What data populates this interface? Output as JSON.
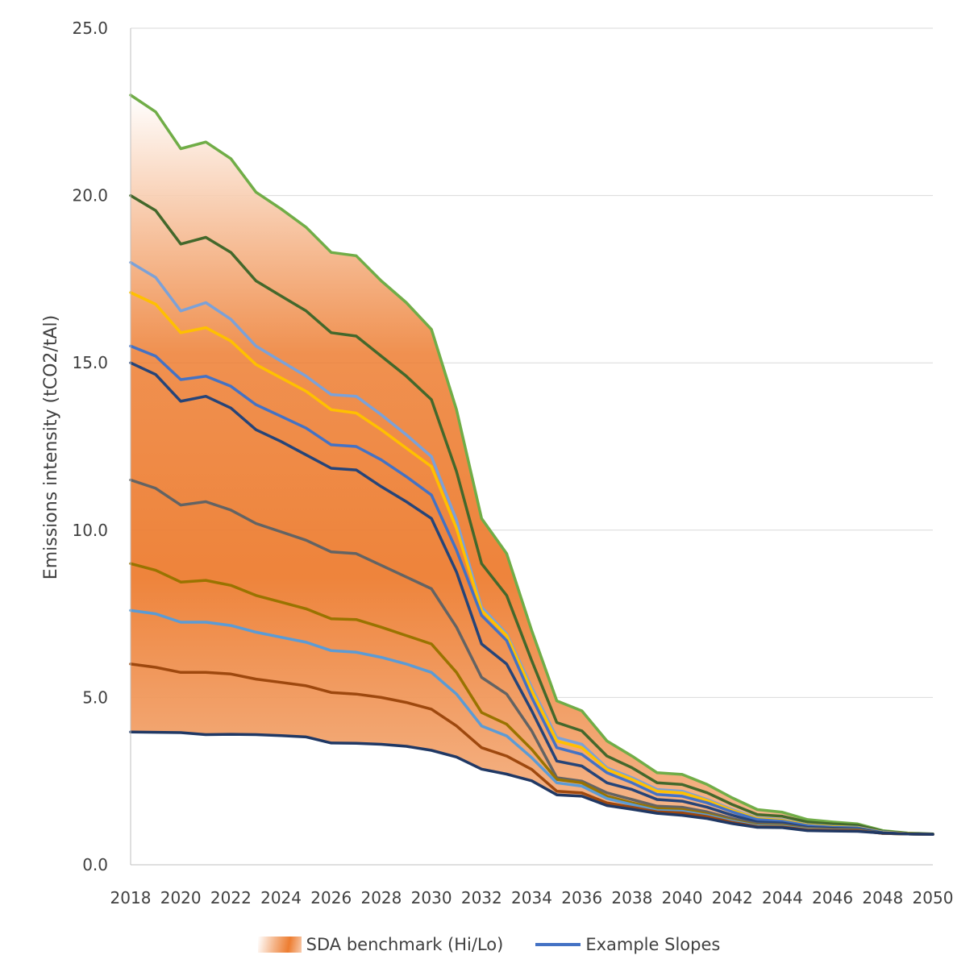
{
  "chart_data": {
    "type": "line",
    "title": "",
    "xlabel": "",
    "ylabel": "Emissions intensity (tCO2/tAl)",
    "ylim": [
      0,
      25
    ],
    "yticks": [
      "0.0",
      "5.0",
      "10.0",
      "15.0",
      "20.0",
      "25.0"
    ],
    "xlim": [
      2018,
      2050
    ],
    "xticks": [
      "2018",
      "2020",
      "2022",
      "2024",
      "2026",
      "2028",
      "2030",
      "2032",
      "2034",
      "2036",
      "2038",
      "2040",
      "2042",
      "2044",
      "2046",
      "2048",
      "2050"
    ],
    "grid": "horizontal",
    "legend_position": "bottom",
    "legend": [
      {
        "label": "SDA benchmark (Hi/Lo)",
        "kind": "band"
      },
      {
        "label": "Example Slopes",
        "kind": "line",
        "color": "#4472c4"
      }
    ],
    "x": [
      2018,
      2019,
      2020,
      2021,
      2022,
      2023,
      2024,
      2025,
      2026,
      2027,
      2028,
      2029,
      2030,
      2031,
      2032,
      2033,
      2034,
      2035,
      2036,
      2037,
      2038,
      2039,
      2040,
      2041,
      2042,
      2043,
      2044,
      2045,
      2046,
      2047,
      2048,
      2049,
      2050
    ],
    "band": {
      "name": "SDA benchmark (Hi/Lo)",
      "high": [
        23.0,
        22.5,
        21.4,
        21.6,
        21.1,
        20.1,
        19.6,
        19.05,
        18.3,
        18.2,
        17.45,
        16.8,
        16.0,
        13.6,
        10.35,
        9.3,
        7.0,
        4.9,
        4.6,
        3.7,
        3.25,
        2.75,
        2.7,
        2.4,
        2.0,
        1.65,
        1.57,
        1.35,
        1.28,
        1.22,
        1.02,
        0.95,
        0.92
      ],
      "low": [
        3.97,
        3.96,
        3.95,
        3.89,
        3.9,
        3.89,
        3.86,
        3.82,
        3.64,
        3.63,
        3.6,
        3.54,
        3.42,
        3.22,
        2.86,
        2.71,
        2.51,
        2.09,
        2.05,
        1.77,
        1.66,
        1.54,
        1.48,
        1.38,
        1.23,
        1.12,
        1.11,
        1.02,
        1.01,
        1.0,
        0.95,
        0.92,
        0.91
      ]
    },
    "series": [
      {
        "color": "#70ad47",
        "values": [
          23.0,
          22.5,
          21.4,
          21.6,
          21.1,
          20.1,
          19.6,
          19.05,
          18.3,
          18.2,
          17.45,
          16.8,
          16.0,
          13.6,
          10.35,
          9.3,
          7.0,
          4.9,
          4.6,
          3.7,
          3.25,
          2.75,
          2.7,
          2.4,
          2.0,
          1.65,
          1.57,
          1.35,
          1.28,
          1.22,
          1.02,
          0.95,
          0.92
        ]
      },
      {
        "color": "#43682b",
        "values": [
          20.0,
          19.55,
          18.55,
          18.75,
          18.3,
          17.45,
          17.0,
          16.55,
          15.9,
          15.8,
          15.2,
          14.6,
          13.9,
          11.75,
          9.0,
          8.05,
          6.1,
          4.25,
          4.0,
          3.25,
          2.9,
          2.45,
          2.4,
          2.15,
          1.8,
          1.5,
          1.45,
          1.28,
          1.22,
          1.18,
          1.0,
          0.94,
          0.92
        ]
      },
      {
        "color": "#7ca1d7",
        "values": [
          18.0,
          17.55,
          16.55,
          16.8,
          16.3,
          15.5,
          15.05,
          14.6,
          14.05,
          14.0,
          13.45,
          12.85,
          12.2,
          10.3,
          7.7,
          6.9,
          5.3,
          3.8,
          3.6,
          2.9,
          2.6,
          2.25,
          2.2,
          1.95,
          1.65,
          1.4,
          1.35,
          1.2,
          1.15,
          1.12,
          0.98,
          0.93,
          0.91
        ]
      },
      {
        "color": "#ffc000",
        "values": [
          17.1,
          16.75,
          15.9,
          16.05,
          15.65,
          14.95,
          14.55,
          14.15,
          13.6,
          13.5,
          13.0,
          12.45,
          11.9,
          10.05,
          7.6,
          6.85,
          5.2,
          3.7,
          3.5,
          2.85,
          2.55,
          2.2,
          2.15,
          1.92,
          1.62,
          1.38,
          1.33,
          1.19,
          1.14,
          1.11,
          0.97,
          0.93,
          0.91
        ]
      },
      {
        "color": "#4472c4",
        "values": [
          15.5,
          15.2,
          14.5,
          14.6,
          14.3,
          13.75,
          13.4,
          13.05,
          12.55,
          12.5,
          12.1,
          11.6,
          11.05,
          9.4,
          7.45,
          6.7,
          5.0,
          3.5,
          3.3,
          2.75,
          2.45,
          2.1,
          2.05,
          1.85,
          1.58,
          1.35,
          1.3,
          1.17,
          1.12,
          1.1,
          0.96,
          0.92,
          0.91
        ]
      },
      {
        "color": "#264478",
        "values": [
          15.0,
          14.65,
          13.85,
          14.0,
          13.65,
          13.0,
          12.65,
          12.25,
          11.85,
          11.8,
          11.3,
          10.85,
          10.35,
          8.75,
          6.6,
          6.0,
          4.6,
          3.1,
          2.95,
          2.45,
          2.25,
          1.95,
          1.9,
          1.72,
          1.48,
          1.28,
          1.25,
          1.12,
          1.09,
          1.07,
          0.95,
          0.92,
          0.91
        ]
      },
      {
        "color": "#636363",
        "values": [
          11.5,
          11.25,
          10.75,
          10.85,
          10.6,
          10.2,
          9.95,
          9.7,
          9.35,
          9.3,
          8.95,
          8.6,
          8.25,
          7.1,
          5.6,
          5.1,
          4.0,
          2.6,
          2.5,
          2.15,
          1.95,
          1.75,
          1.72,
          1.58,
          1.38,
          1.22,
          1.2,
          1.09,
          1.06,
          1.05,
          0.94,
          0.92,
          0.91
        ]
      },
      {
        "color": "#997300",
        "values": [
          9.0,
          8.8,
          8.45,
          8.5,
          8.35,
          8.05,
          7.85,
          7.65,
          7.35,
          7.33,
          7.1,
          6.85,
          6.6,
          5.75,
          4.55,
          4.2,
          3.45,
          2.55,
          2.45,
          2.05,
          1.85,
          1.68,
          1.65,
          1.52,
          1.33,
          1.18,
          1.17,
          1.07,
          1.05,
          1.04,
          0.94,
          0.92,
          0.91
        ]
      },
      {
        "color": "#5b9bd5",
        "values": [
          7.6,
          7.5,
          7.25,
          7.25,
          7.15,
          6.95,
          6.8,
          6.65,
          6.4,
          6.35,
          6.2,
          6.0,
          5.75,
          5.1,
          4.15,
          3.85,
          3.2,
          2.45,
          2.35,
          1.98,
          1.8,
          1.62,
          1.6,
          1.48,
          1.3,
          1.16,
          1.15,
          1.06,
          1.04,
          1.03,
          0.94,
          0.92,
          0.91
        ]
      },
      {
        "color": "#9e480e",
        "values": [
          6.0,
          5.9,
          5.75,
          5.75,
          5.7,
          5.55,
          5.45,
          5.35,
          5.15,
          5.1,
          5.0,
          4.85,
          4.65,
          4.15,
          3.5,
          3.25,
          2.85,
          2.2,
          2.15,
          1.85,
          1.72,
          1.58,
          1.55,
          1.44,
          1.27,
          1.14,
          1.13,
          1.04,
          1.03,
          1.02,
          0.94,
          0.92,
          0.91
        ]
      },
      {
        "color": "#203864",
        "values": [
          3.97,
          3.96,
          3.95,
          3.89,
          3.9,
          3.89,
          3.86,
          3.82,
          3.64,
          3.63,
          3.6,
          3.54,
          3.42,
          3.22,
          2.86,
          2.71,
          2.51,
          2.09,
          2.05,
          1.77,
          1.66,
          1.54,
          1.48,
          1.38,
          1.23,
          1.12,
          1.11,
          1.02,
          1.01,
          1.0,
          0.95,
          0.92,
          0.91
        ]
      }
    ]
  }
}
